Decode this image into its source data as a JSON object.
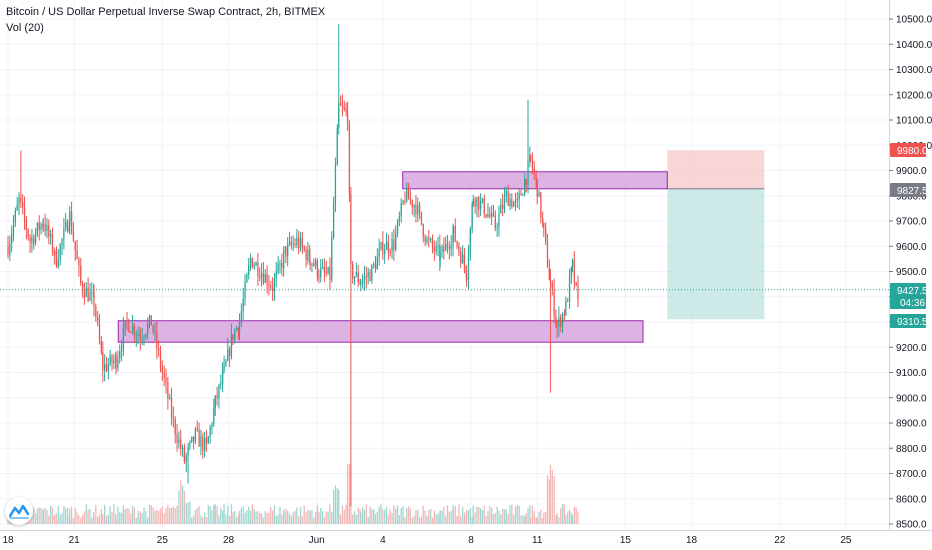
{
  "header": {
    "title": "Bitcoin / US Dollar Perpetual Inverse Swap Contract, 2h, BITMEX",
    "indicator": "Vol (20)"
  },
  "logo": {
    "icon": "tradingview-logo-icon"
  },
  "colors": {
    "up": "#26a69a",
    "down": "#ef5350",
    "zone": "#ce93d8",
    "zone_border": "#9c27b0",
    "stop": "#f7c4c4",
    "target": "#b2dfdb",
    "price_line": "#26a69a",
    "grid": "#f0f3fa",
    "axis_text": "#131722"
  },
  "chart_data": {
    "type": "candlestick",
    "title": "Bitcoin / US Dollar Perpetual Inverse Swap Contract, 2h, BITMEX",
    "indicator": "Vol (20)",
    "y_axis": {
      "range": [
        8500,
        10580
      ],
      "ticks": [
        8500,
        8600,
        8700,
        8800,
        8900,
        9000,
        9100,
        9200,
        9300,
        9400,
        9500,
        9600,
        9700,
        9800,
        9900,
        10000,
        10100,
        10200,
        10300,
        10400,
        10500
      ],
      "tick_labels": [
        "8500.0",
        "8600.0",
        "8700.0",
        "8800.0",
        "8900.0",
        "9000.0",
        "9100.0",
        "9200.0",
        "9300.0",
        "9400.0",
        "9500.0",
        "9600.0",
        "9700.0",
        "9800.0",
        "9900.0",
        "10000.0",
        "10100.0",
        "10200.0",
        "10300.0",
        "10400.0",
        "10500.0"
      ]
    },
    "x_axis": {
      "range_days": [
        0,
        27.2
      ],
      "ticks": [
        {
          "day": 0,
          "label": "18"
        },
        {
          "day": 3,
          "label": "21"
        },
        {
          "day": 7,
          "label": "25"
        },
        {
          "day": 10,
          "label": "28"
        },
        {
          "day": 14,
          "label": "Jun"
        },
        {
          "day": 17,
          "label": "4"
        },
        {
          "day": 21,
          "label": "8"
        },
        {
          "day": 24,
          "label": "11"
        },
        {
          "day": 28,
          "label": "15"
        },
        {
          "day": 31,
          "label": "18"
        },
        {
          "day": 35,
          "label": "22"
        },
        {
          "day": 38,
          "label": "25"
        }
      ]
    },
    "price_tags": {
      "stop": "9980.0",
      "entry": "9827.5",
      "current": "9427.5",
      "countdown": "04:36",
      "target": "9310.5"
    },
    "zones": [
      {
        "name": "resistance-zone",
        "x0_day": 17.9,
        "x1_day": 29.9,
        "y_low": 9827.5,
        "y_high": 9895
      },
      {
        "name": "support-zone",
        "x0_day": 5.0,
        "x1_day": 28.8,
        "y_low": 9220,
        "y_high": 9305
      }
    ],
    "position": {
      "type": "short",
      "x0_day": 29.9,
      "x1_day": 34.3,
      "stop": 9980.0,
      "entry": 9827.5,
      "target": 9310.5
    },
    "anchors": [
      [
        0,
        9600
      ],
      [
        0.5,
        9780
      ],
      [
        1.0,
        9620
      ],
      [
        1.6,
        9700
      ],
      [
        2.2,
        9550
      ],
      [
        2.8,
        9720
      ],
      [
        3.3,
        9450
      ],
      [
        3.9,
        9380
      ],
      [
        4.3,
        9120
      ],
      [
        4.9,
        9150
      ],
      [
        5.4,
        9300
      ],
      [
        6.0,
        9250
      ],
      [
        6.5,
        9300
      ],
      [
        7.0,
        9100
      ],
      [
        7.5,
        8900
      ],
      [
        8.0,
        8750
      ],
      [
        8.5,
        8850
      ],
      [
        9.0,
        8800
      ],
      [
        9.4,
        8980
      ],
      [
        9.8,
        9100
      ],
      [
        10.2,
        9250
      ],
      [
        10.5,
        9300
      ],
      [
        11.0,
        9550
      ],
      [
        11.5,
        9500
      ],
      [
        12.0,
        9440
      ],
      [
        12.6,
        9580
      ],
      [
        13.1,
        9620
      ],
      [
        13.7,
        9550
      ],
      [
        14.1,
        9500
      ],
      [
        14.6,
        9480
      ],
      [
        15.0,
        10150
      ],
      [
        15.4,
        10120
      ],
      [
        15.55,
        9500
      ],
      [
        16.0,
        9460
      ],
      [
        16.5,
        9500
      ],
      [
        17.0,
        9600
      ],
      [
        17.5,
        9610
      ],
      [
        18.0,
        9800
      ],
      [
        18.5,
        9760
      ],
      [
        19.0,
        9620
      ],
      [
        19.6,
        9560
      ],
      [
        20.2,
        9650
      ],
      [
        20.8,
        9500
      ],
      [
        21.1,
        9800
      ],
      [
        21.6,
        9750
      ],
      [
        22.1,
        9680
      ],
      [
        22.6,
        9800
      ],
      [
        23.1,
        9760
      ],
      [
        23.5,
        9880
      ],
      [
        23.7,
        9940
      ],
      [
        24.0,
        9830
      ],
      [
        24.3,
        9650
      ],
      [
        24.6,
        9450
      ],
      [
        24.9,
        9280
      ],
      [
        25.3,
        9360
      ],
      [
        25.6,
        9520
      ],
      [
        25.9,
        9330
      ]
    ]
  }
}
